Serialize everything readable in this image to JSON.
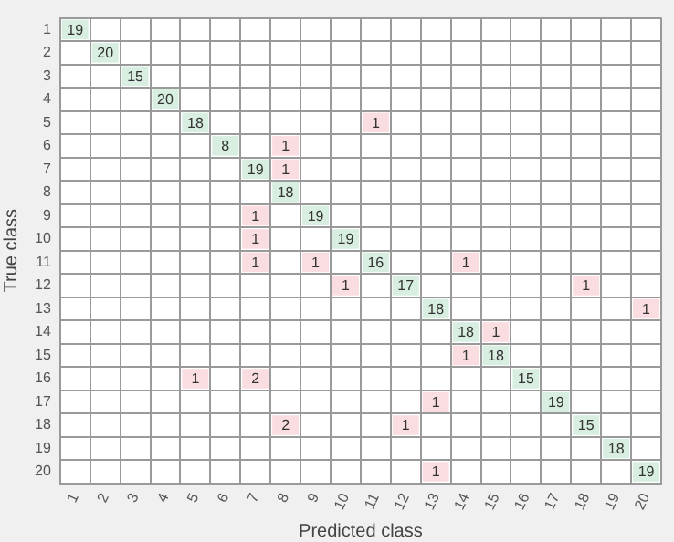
{
  "chart_data": {
    "type": "heatmap",
    "xlabel": "Predicted class",
    "ylabel": "True class",
    "categories": [
      "1",
      "2",
      "3",
      "4",
      "5",
      "6",
      "7",
      "8",
      "9",
      "10",
      "11",
      "12",
      "13",
      "14",
      "15",
      "16",
      "17",
      "18",
      "19",
      "20"
    ],
    "y_categories": [
      "1",
      "2",
      "3",
      "4",
      "5",
      "6",
      "7",
      "8",
      "9",
      "10",
      "11",
      "12",
      "13",
      "14",
      "15",
      "16",
      "17",
      "18",
      "19",
      "20"
    ],
    "cells": [
      [
        19,
        null,
        null,
        null,
        null,
        null,
        null,
        null,
        null,
        null,
        null,
        null,
        null,
        null,
        null,
        null,
        null,
        null,
        null,
        null
      ],
      [
        null,
        20,
        null,
        null,
        null,
        null,
        null,
        null,
        null,
        null,
        null,
        null,
        null,
        null,
        null,
        null,
        null,
        null,
        null,
        null
      ],
      [
        null,
        null,
        15,
        null,
        null,
        null,
        null,
        null,
        null,
        null,
        null,
        null,
        null,
        null,
        null,
        null,
        null,
        null,
        null,
        null
      ],
      [
        null,
        null,
        null,
        20,
        null,
        null,
        null,
        null,
        null,
        null,
        null,
        null,
        null,
        null,
        null,
        null,
        null,
        null,
        null,
        null
      ],
      [
        null,
        null,
        null,
        null,
        18,
        null,
        null,
        null,
        null,
        null,
        1,
        null,
        null,
        null,
        null,
        null,
        null,
        null,
        null,
        null
      ],
      [
        null,
        null,
        null,
        null,
        null,
        8,
        null,
        1,
        null,
        null,
        null,
        null,
        null,
        null,
        null,
        null,
        null,
        null,
        null,
        null
      ],
      [
        null,
        null,
        null,
        null,
        null,
        null,
        19,
        1,
        null,
        null,
        null,
        null,
        null,
        null,
        null,
        null,
        null,
        null,
        null,
        null
      ],
      [
        null,
        null,
        null,
        null,
        null,
        null,
        null,
        18,
        null,
        null,
        null,
        null,
        null,
        null,
        null,
        null,
        null,
        null,
        null,
        null
      ],
      [
        null,
        null,
        null,
        null,
        null,
        null,
        1,
        null,
        19,
        null,
        null,
        null,
        null,
        null,
        null,
        null,
        null,
        null,
        null,
        null
      ],
      [
        null,
        null,
        null,
        null,
        null,
        null,
        1,
        null,
        null,
        19,
        null,
        null,
        null,
        null,
        null,
        null,
        null,
        null,
        null,
        null
      ],
      [
        null,
        null,
        null,
        null,
        null,
        null,
        1,
        null,
        1,
        null,
        16,
        null,
        null,
        1,
        null,
        null,
        null,
        null,
        null,
        null
      ],
      [
        null,
        null,
        null,
        null,
        null,
        null,
        null,
        null,
        null,
        1,
        null,
        17,
        null,
        null,
        null,
        null,
        null,
        1,
        null,
        null
      ],
      [
        null,
        null,
        null,
        null,
        null,
        null,
        null,
        null,
        null,
        null,
        null,
        null,
        18,
        null,
        null,
        null,
        null,
        null,
        null,
        1
      ],
      [
        null,
        null,
        null,
        null,
        null,
        null,
        null,
        null,
        null,
        null,
        null,
        null,
        null,
        18,
        1,
        null,
        null,
        null,
        null,
        null
      ],
      [
        null,
        null,
        null,
        null,
        null,
        null,
        null,
        null,
        null,
        null,
        null,
        null,
        null,
        1,
        18,
        null,
        null,
        null,
        null,
        null
      ],
      [
        null,
        null,
        null,
        null,
        1,
        null,
        2,
        null,
        null,
        null,
        null,
        null,
        null,
        null,
        null,
        15,
        null,
        null,
        null,
        null
      ],
      [
        null,
        null,
        null,
        null,
        null,
        null,
        null,
        null,
        null,
        null,
        null,
        null,
        1,
        null,
        null,
        null,
        19,
        null,
        null,
        null
      ],
      [
        null,
        null,
        null,
        null,
        null,
        null,
        null,
        2,
        null,
        null,
        null,
        1,
        null,
        null,
        null,
        null,
        null,
        15,
        null,
        null
      ],
      [
        null,
        null,
        null,
        null,
        null,
        null,
        null,
        null,
        null,
        null,
        null,
        null,
        null,
        null,
        null,
        null,
        null,
        null,
        18,
        null
      ],
      [
        null,
        null,
        null,
        null,
        null,
        null,
        null,
        null,
        null,
        null,
        null,
        null,
        1,
        null,
        null,
        null,
        null,
        null,
        null,
        19
      ]
    ],
    "data_labels": true,
    "grid": true
  }
}
